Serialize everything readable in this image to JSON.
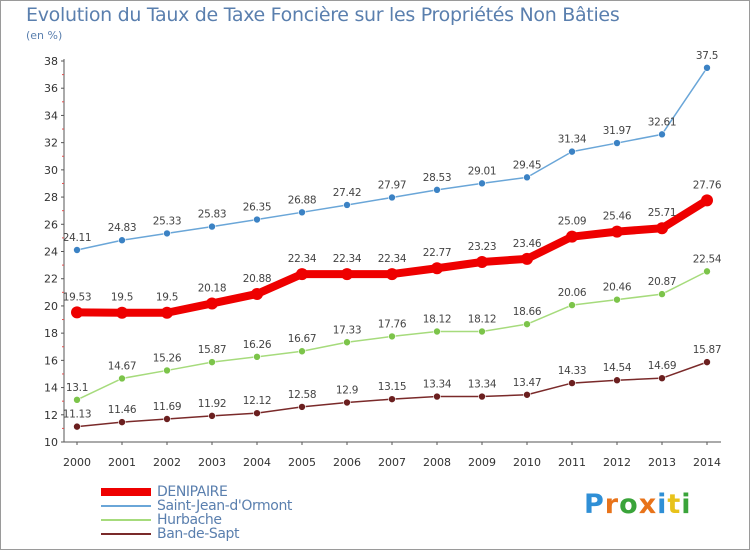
{
  "title": "Evolution du Taux de Taxe Foncière sur les Propriétés Non Bâties",
  "unit": "(en %)",
  "logo": {
    "text": "Proxiti",
    "letter_colors": [
      "#2f8fd6",
      "#e8731a",
      "#3aa43a",
      "#e8731a",
      "#2f8fd6",
      "#e8c21a",
      "#3aa43a"
    ]
  },
  "chart_data": {
    "type": "line",
    "title": "Evolution du Taux de Taxe Foncière sur les Propriétés Non Bâties",
    "ylabel": "(en %)",
    "xlabel": "",
    "x": [
      "2000",
      "2001",
      "2002",
      "2003",
      "2004",
      "2005",
      "2006",
      "2007",
      "2008",
      "2009",
      "2010",
      "2011",
      "2012",
      "2013",
      "2014"
    ],
    "ylim": [
      10,
      38
    ],
    "yticks": [
      "10",
      "12",
      "14",
      "16",
      "18",
      "20",
      "22",
      "24",
      "26",
      "28",
      "30",
      "32",
      "34",
      "36",
      "38"
    ],
    "grid": false,
    "legend_position": "bottom-left",
    "series": [
      {
        "name": "DENIPAIRE",
        "color": "#ee0000",
        "width": 8,
        "marker": 6,
        "values": [
          19.53,
          19.5,
          19.5,
          20.18,
          20.88,
          22.34,
          22.34,
          22.34,
          22.77,
          23.23,
          23.46,
          25.09,
          25.46,
          25.71,
          27.76
        ],
        "labels": [
          "19.53",
          "19.5",
          "19.5",
          "20.18",
          "20.88",
          "22.34",
          "22.34",
          "22.34",
          "22.77",
          "23.23",
          "23.46",
          "25.09",
          "25.46",
          "25.71",
          "27.76"
        ]
      },
      {
        "name": "Saint-Jean-d'Ormont",
        "color": "#6aa6d8",
        "marker_color": "#3b82c4",
        "width": 1.5,
        "marker": 3.5,
        "values": [
          24.11,
          24.83,
          25.33,
          25.83,
          26.35,
          26.88,
          27.42,
          27.97,
          28.53,
          29.01,
          29.45,
          31.34,
          31.97,
          32.61,
          37.5
        ],
        "labels": [
          "24.11",
          "24.83",
          "25.33",
          "25.83",
          "26.35",
          "26.88",
          "27.42",
          "27.97",
          "28.53",
          "29.01",
          "29.45",
          "31.34",
          "31.97",
          "32.61",
          "37.5"
        ]
      },
      {
        "name": "Hurbache",
        "color": "#a6db7c",
        "marker_color": "#7cc44a",
        "width": 1.5,
        "marker": 3.5,
        "values": [
          13.1,
          14.67,
          15.26,
          15.87,
          16.26,
          16.67,
          17.33,
          17.76,
          18.12,
          18.12,
          18.66,
          20.06,
          20.46,
          20.87,
          22.54
        ],
        "labels": [
          "13.1",
          "14.67",
          "15.26",
          "15.87",
          "16.26",
          "16.67",
          "17.33",
          "17.76",
          "18.12",
          "18.12",
          "18.66",
          "20.06",
          "20.46",
          "20.87",
          "22.54"
        ]
      },
      {
        "name": "Ban-de-Sapt",
        "color": "#7a2a2a",
        "marker_color": "#6b1f1f",
        "width": 1.5,
        "marker": 3.5,
        "values": [
          11.13,
          11.46,
          11.69,
          11.92,
          12.12,
          12.58,
          12.9,
          13.15,
          13.34,
          13.34,
          13.47,
          14.33,
          14.54,
          14.69,
          15.87
        ],
        "labels": [
          "11.13",
          "11.46",
          "11.69",
          "11.92",
          "12.12",
          "12.58",
          "12.9",
          "13.15",
          "13.34",
          "13.34",
          "13.47",
          "14.33",
          "14.54",
          "14.69",
          "15.87"
        ]
      }
    ]
  },
  "legend": [
    {
      "name": "DENIPAIRE",
      "color": "#ee0000",
      "text_color": "#5a7fae",
      "thickness": 8
    },
    {
      "name": "Saint-Jean-d'Ormont",
      "color": "#6aa6d8",
      "text_color": "#5a7fae",
      "thickness": 2
    },
    {
      "name": "Hurbache",
      "color": "#a6db7c",
      "text_color": "#5a7fae",
      "thickness": 2
    },
    {
      "name": "Ban-de-Sapt",
      "color": "#7a2a2a",
      "text_color": "#5a7fae",
      "thickness": 2
    }
  ]
}
